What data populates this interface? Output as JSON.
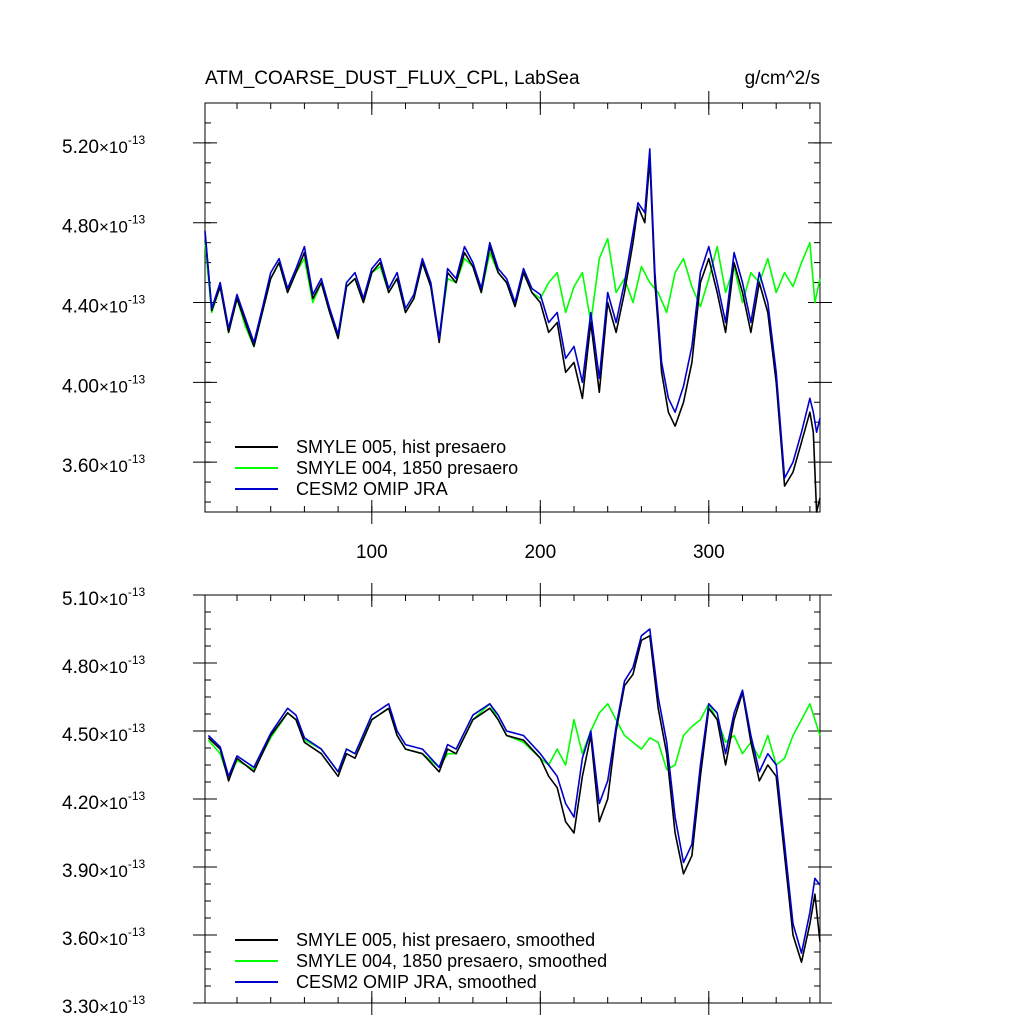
{
  "header": {
    "title": "ATM_COARSE_DUST_FLUX_CPL, LabSea",
    "units": "g/cm^2/s"
  },
  "chart_data": [
    {
      "type": "line",
      "title": "ATM_COARSE_DUST_FLUX_CPL, LabSea",
      "units": "g/cm^2/s",
      "xlim": [
        1,
        366
      ],
      "ylim": [
        3.35,
        5.4
      ],
      "y_exponent": "-13",
      "x_ticks": [
        100,
        200,
        300
      ],
      "y_ticks": [
        {
          "value": 3.6,
          "label": "3.60"
        },
        {
          "value": 4.0,
          "label": "4.00"
        },
        {
          "value": 4.4,
          "label": "4.40"
        },
        {
          "value": 4.8,
          "label": "4.80"
        },
        {
          "value": 5.2,
          "label": "5.20"
        }
      ],
      "legend_position": "bottom-left",
      "series": [
        {
          "name": "SMYLE 005, hist presaero",
          "color": "#000000",
          "x": [
            1,
            5,
            10,
            15,
            20,
            25,
            30,
            35,
            40,
            45,
            50,
            55,
            60,
            65,
            70,
            75,
            80,
            85,
            90,
            95,
            100,
            105,
            110,
            115,
            120,
            125,
            130,
            135,
            140,
            145,
            150,
            155,
            160,
            165,
            170,
            175,
            180,
            185,
            190,
            195,
            200,
            205,
            210,
            215,
            220,
            225,
            230,
            235,
            240,
            245,
            250,
            255,
            258,
            262,
            265,
            268,
            272,
            276,
            280,
            285,
            290,
            295,
            300,
            305,
            310,
            315,
            320,
            325,
            330,
            335,
            340,
            345,
            350,
            355,
            360,
            362,
            364,
            366
          ],
          "y": [
            4.75,
            4.36,
            4.48,
            4.25,
            4.42,
            4.3,
            4.18,
            4.35,
            4.52,
            4.6,
            4.45,
            4.55,
            4.65,
            4.42,
            4.5,
            4.35,
            4.22,
            4.48,
            4.52,
            4.4,
            4.55,
            4.6,
            4.45,
            4.52,
            4.35,
            4.42,
            4.6,
            4.48,
            4.2,
            4.55,
            4.5,
            4.65,
            4.58,
            4.45,
            4.68,
            4.55,
            4.5,
            4.38,
            4.55,
            4.45,
            4.4,
            4.25,
            4.3,
            4.05,
            4.1,
            3.92,
            4.3,
            3.95,
            4.4,
            4.25,
            4.45,
            4.7,
            4.88,
            4.8,
            5.12,
            4.5,
            4.05,
            3.85,
            3.78,
            3.9,
            4.1,
            4.5,
            4.62,
            4.45,
            4.25,
            4.6,
            4.45,
            4.25,
            4.5,
            4.35,
            4.0,
            3.48,
            3.55,
            3.7,
            3.85,
            3.75,
            3.35,
            3.42
          ]
        },
        {
          "name": "SMYLE 004, 1850 presaero",
          "color": "#00ff00",
          "x": [
            1,
            5,
            10,
            15,
            20,
            25,
            30,
            35,
            40,
            45,
            50,
            55,
            60,
            65,
            70,
            75,
            80,
            85,
            90,
            95,
            100,
            105,
            110,
            115,
            120,
            125,
            130,
            135,
            140,
            145,
            150,
            155,
            160,
            165,
            170,
            175,
            180,
            185,
            190,
            195,
            200,
            205,
            210,
            215,
            220,
            225,
            230,
            235,
            240,
            245,
            250,
            255,
            260,
            265,
            270,
            275,
            280,
            285,
            290,
            295,
            300,
            305,
            310,
            315,
            320,
            325,
            330,
            335,
            340,
            345,
            350,
            355,
            360,
            363,
            366
          ],
          "y": [
            4.7,
            4.35,
            4.48,
            4.25,
            4.42,
            4.28,
            4.18,
            4.35,
            4.52,
            4.6,
            4.45,
            4.55,
            4.62,
            4.4,
            4.5,
            4.35,
            4.22,
            4.48,
            4.52,
            4.4,
            4.55,
            4.58,
            4.45,
            4.52,
            4.35,
            4.42,
            4.6,
            4.48,
            4.22,
            4.52,
            4.5,
            4.62,
            4.58,
            4.45,
            4.65,
            4.55,
            4.5,
            4.38,
            4.55,
            4.45,
            4.42,
            4.5,
            4.55,
            4.35,
            4.48,
            4.55,
            4.3,
            4.62,
            4.72,
            4.45,
            4.52,
            4.4,
            4.58,
            4.5,
            4.45,
            4.35,
            4.55,
            4.62,
            4.48,
            4.38,
            4.52,
            4.68,
            4.45,
            4.58,
            4.4,
            4.55,
            4.5,
            4.62,
            4.45,
            4.55,
            4.48,
            4.6,
            4.7,
            4.4,
            4.52
          ]
        },
        {
          "name": "CESM2 OMIP JRA",
          "color": "#0000cd",
          "x": [
            1,
            5,
            10,
            15,
            20,
            25,
            30,
            35,
            40,
            45,
            50,
            55,
            60,
            65,
            70,
            75,
            80,
            85,
            90,
            95,
            100,
            105,
            110,
            115,
            120,
            125,
            130,
            135,
            140,
            145,
            150,
            155,
            160,
            165,
            170,
            175,
            180,
            185,
            190,
            195,
            200,
            205,
            210,
            215,
            220,
            225,
            230,
            235,
            240,
            245,
            250,
            255,
            258,
            262,
            265,
            268,
            272,
            276,
            280,
            285,
            290,
            295,
            300,
            305,
            310,
            315,
            320,
            325,
            330,
            335,
            340,
            345,
            350,
            355,
            360,
            362,
            364,
            366
          ],
          "y": [
            4.76,
            4.37,
            4.5,
            4.27,
            4.44,
            4.32,
            4.2,
            4.37,
            4.55,
            4.62,
            4.47,
            4.57,
            4.68,
            4.44,
            4.52,
            4.37,
            4.24,
            4.5,
            4.55,
            4.42,
            4.57,
            4.62,
            4.47,
            4.55,
            4.37,
            4.44,
            4.62,
            4.5,
            4.22,
            4.57,
            4.52,
            4.68,
            4.6,
            4.47,
            4.7,
            4.57,
            4.52,
            4.4,
            4.57,
            4.47,
            4.44,
            4.3,
            4.35,
            4.12,
            4.18,
            4.0,
            4.35,
            4.02,
            4.45,
            4.3,
            4.5,
            4.75,
            4.9,
            4.85,
            5.17,
            4.55,
            4.1,
            3.92,
            3.85,
            3.98,
            4.18,
            4.55,
            4.68,
            4.5,
            4.3,
            4.65,
            4.5,
            4.3,
            4.55,
            4.4,
            4.05,
            3.52,
            3.6,
            3.75,
            3.92,
            3.85,
            3.75,
            3.82
          ]
        }
      ]
    },
    {
      "type": "line",
      "xlim": [
        1,
        366
      ],
      "ylim": [
        3.3,
        5.1
      ],
      "y_exponent": "-13",
      "y_ticks": [
        {
          "value": 3.3,
          "label": "3.30"
        },
        {
          "value": 3.6,
          "label": "3.60"
        },
        {
          "value": 3.9,
          "label": "3.90"
        },
        {
          "value": 4.2,
          "label": "4.20"
        },
        {
          "value": 4.5,
          "label": "4.50"
        },
        {
          "value": 4.8,
          "label": "4.80"
        },
        {
          "value": 5.1,
          "label": "5.10"
        }
      ],
      "x_ticks": [
        100,
        200,
        300
      ],
      "legend_position": "bottom-left",
      "series": [
        {
          "name": "SMYLE 005, hist presaero, smoothed",
          "color": "#000000",
          "x": [
            3,
            10,
            15,
            20,
            30,
            40,
            50,
            55,
            60,
            70,
            80,
            85,
            90,
            100,
            110,
            115,
            120,
            130,
            140,
            145,
            150,
            160,
            170,
            175,
            180,
            190,
            200,
            205,
            210,
            215,
            220,
            225,
            230,
            235,
            240,
            245,
            250,
            255,
            260,
            265,
            270,
            275,
            280,
            285,
            290,
            295,
            300,
            305,
            310,
            315,
            320,
            325,
            330,
            335,
            340,
            345,
            350,
            355,
            360,
            363,
            366
          ],
          "y": [
            4.47,
            4.42,
            4.28,
            4.38,
            4.32,
            4.48,
            4.58,
            4.55,
            4.45,
            4.4,
            4.3,
            4.4,
            4.38,
            4.55,
            4.6,
            4.48,
            4.42,
            4.4,
            4.32,
            4.42,
            4.4,
            4.55,
            4.6,
            4.55,
            4.48,
            4.46,
            4.38,
            4.3,
            4.25,
            4.1,
            4.05,
            4.3,
            4.48,
            4.1,
            4.2,
            4.5,
            4.7,
            4.75,
            4.9,
            4.92,
            4.6,
            4.4,
            4.05,
            3.87,
            3.95,
            4.3,
            4.6,
            4.55,
            4.35,
            4.55,
            4.67,
            4.45,
            4.28,
            4.35,
            4.3,
            3.95,
            3.6,
            3.48,
            3.65,
            3.78,
            3.57
          ]
        },
        {
          "name": "SMYLE 004, 1850 presaero, smoothed",
          "color": "#00ff00",
          "x": [
            3,
            10,
            15,
            20,
            30,
            40,
            50,
            55,
            60,
            70,
            80,
            85,
            90,
            100,
            110,
            115,
            120,
            130,
            140,
            145,
            150,
            160,
            170,
            175,
            180,
            190,
            200,
            205,
            210,
            215,
            220,
            225,
            230,
            235,
            240,
            245,
            250,
            255,
            260,
            265,
            270,
            275,
            280,
            285,
            290,
            295,
            300,
            305,
            310,
            315,
            320,
            325,
            330,
            335,
            340,
            345,
            350,
            355,
            360,
            363,
            366
          ],
          "y": [
            4.46,
            4.4,
            4.29,
            4.37,
            4.33,
            4.47,
            4.58,
            4.55,
            4.46,
            4.42,
            4.32,
            4.42,
            4.4,
            4.55,
            4.6,
            4.48,
            4.42,
            4.4,
            4.34,
            4.4,
            4.4,
            4.55,
            4.62,
            4.55,
            4.48,
            4.45,
            4.38,
            4.35,
            4.42,
            4.35,
            4.55,
            4.4,
            4.5,
            4.58,
            4.62,
            4.55,
            4.48,
            4.45,
            4.42,
            4.47,
            4.45,
            4.33,
            4.35,
            4.48,
            4.52,
            4.55,
            4.62,
            4.55,
            4.45,
            4.48,
            4.4,
            4.45,
            4.38,
            4.48,
            4.35,
            4.38,
            4.48,
            4.55,
            4.62,
            4.55,
            4.48
          ]
        },
        {
          "name": "CESM2 OMIP JRA, smoothed",
          "color": "#0000cd",
          "x": [
            3,
            10,
            15,
            20,
            30,
            40,
            50,
            55,
            60,
            70,
            80,
            85,
            90,
            100,
            110,
            115,
            120,
            130,
            140,
            145,
            150,
            160,
            170,
            175,
            180,
            190,
            200,
            205,
            210,
            215,
            220,
            225,
            230,
            235,
            240,
            245,
            250,
            255,
            260,
            265,
            270,
            275,
            280,
            285,
            290,
            295,
            300,
            305,
            310,
            315,
            320,
            325,
            330,
            335,
            340,
            345,
            350,
            355,
            360,
            363,
            366
          ],
          "y": [
            4.48,
            4.43,
            4.3,
            4.39,
            4.34,
            4.49,
            4.6,
            4.57,
            4.47,
            4.42,
            4.32,
            4.42,
            4.4,
            4.57,
            4.62,
            4.5,
            4.44,
            4.42,
            4.34,
            4.44,
            4.42,
            4.57,
            4.62,
            4.57,
            4.5,
            4.48,
            4.4,
            4.35,
            4.3,
            4.18,
            4.12,
            4.38,
            4.5,
            4.18,
            4.28,
            4.52,
            4.72,
            4.78,
            4.92,
            4.95,
            4.65,
            4.45,
            4.12,
            3.92,
            4.0,
            4.35,
            4.62,
            4.58,
            4.4,
            4.58,
            4.68,
            4.48,
            4.32,
            4.4,
            4.35,
            4.0,
            3.65,
            3.52,
            3.7,
            3.85,
            3.82
          ]
        }
      ]
    }
  ]
}
